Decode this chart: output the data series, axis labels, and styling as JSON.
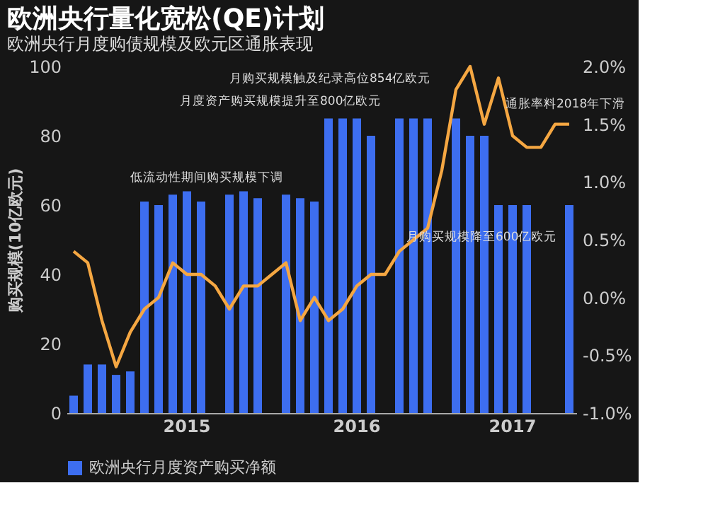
{
  "chart_data": {
    "type": "bar",
    "title": "欧洲央行量化宽松(QE)计划",
    "subtitle": "欧洲央行月度购债规模及欧元区通胀表现",
    "ylabel": "购买规模(10亿欧元)",
    "categories": [
      null,
      null,
      null,
      null,
      null,
      null,
      null,
      null,
      "2015",
      null,
      null,
      null,
      null,
      null,
      null,
      null,
      null,
      null,
      null,
      null,
      "2016",
      null,
      null,
      null,
      null,
      null,
      null,
      null,
      null,
      null,
      null,
      "2017",
      null,
      null,
      null,
      null
    ],
    "series": [
      {
        "name": "欧洲央行月度资产购买净额",
        "color": "#3d6ef0",
        "values": [
          5,
          14,
          14,
          11,
          12,
          61,
          60,
          63,
          64,
          61,
          null,
          63,
          64,
          62,
          null,
          63,
          62,
          61,
          85,
          85,
          85,
          80,
          null,
          85,
          85,
          85,
          null,
          85,
          80,
          80,
          60,
          60,
          60,
          null,
          null,
          60
        ]
      },
      {
        "type": "line",
        "axis": "y2",
        "color": "#f5a742",
        "values": [
          0.4,
          0.3,
          -0.2,
          -0.6,
          -0.3,
          -0.1,
          0.0,
          0.3,
          0.2,
          0.2,
          0.1,
          -0.1,
          0.1,
          0.1,
          0.2,
          0.3,
          -0.2,
          0.0,
          -0.2,
          -0.1,
          0.1,
          0.2,
          0.2,
          0.4,
          0.5,
          0.6,
          1.1,
          1.8,
          2.0,
          1.5,
          1.9,
          1.4,
          1.3,
          1.3,
          1.5,
          1.5
        ]
      }
    ],
    "ylim": [
      0,
      100
    ],
    "yticks": [
      0,
      20,
      40,
      60,
      80,
      100
    ],
    "y2lim": [
      -1,
      2
    ],
    "y2ticks": [
      {
        "value": -1,
        "label": "-1.0%"
      },
      {
        "value": -0.5,
        "label": "-0.5%"
      },
      {
        "value": 0,
        "label": "0.0%"
      },
      {
        "value": 0.5,
        "label": "0.5%"
      },
      {
        "value": 1,
        "label": "1.0%"
      },
      {
        "value": 1.5,
        "label": "1.5%"
      },
      {
        "value": 2,
        "label": "2.0%"
      }
    ],
    "annotations": [
      "低流动性期间购买规模下调",
      "月度资产购买规模提升至800亿欧元",
      "月购买规模触及纪录高位854亿欧元",
      "月购买规模降至600亿欧元",
      "通胀率料2018年下滑"
    ],
    "legend": "bottom"
  }
}
